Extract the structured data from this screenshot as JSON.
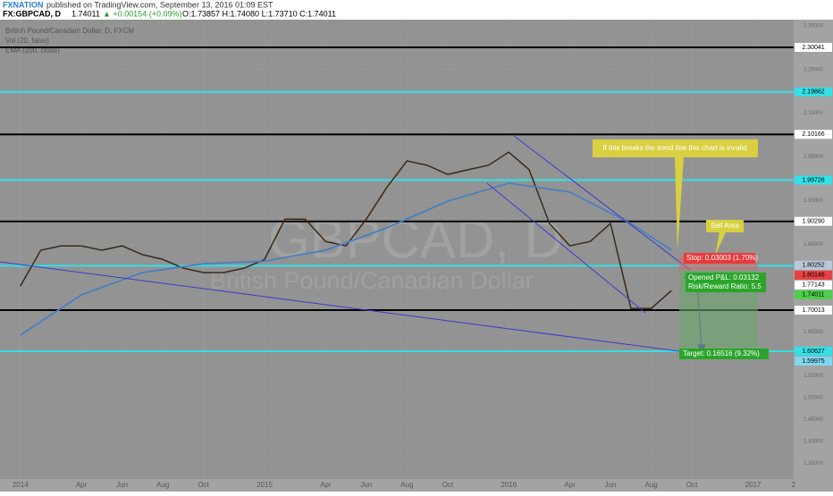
{
  "header": {
    "publisher": "FXNATION",
    "published": "published on TradingView.com, September 13, 2016 01:09 EST",
    "symbol": "FX:GBPCAD, D",
    "price": "1.74011",
    "change": "▲ +0.00154 (+0.09%)",
    "ohlc": "O:1.73857 H:1.74080 L:1.73710 C:1.74011"
  },
  "legend": [
    "British Pound/Canadian Dollar, D, FXCM",
    "Vol (20, false)",
    "EMA (200, close)"
  ],
  "watermark": {
    "symbol": "GBPCAD, D",
    "name": "British Pound/Canadian Dollar"
  },
  "chart_data": {
    "type": "line",
    "xlim": [
      "2013-12",
      "2017-03"
    ],
    "ylim": [
      1.3143,
      2.3637
    ],
    "xticks": [
      {
        "value": "2014-01",
        "label": "2014"
      },
      {
        "value": "2014-04",
        "label": "Apr"
      },
      {
        "value": "2014-06",
        "label": "Jun"
      },
      {
        "value": "2014-08",
        "label": "Aug"
      },
      {
        "value": "2014-10",
        "label": "Oct"
      },
      {
        "value": "2015-01",
        "label": "2015"
      },
      {
        "value": "2015-04",
        "label": "Apr"
      },
      {
        "value": "2015-06",
        "label": "Jun"
      },
      {
        "value": "2015-08",
        "label": "Aug"
      },
      {
        "value": "2015-10",
        "label": "Oct"
      },
      {
        "value": "2016-01",
        "label": "2016"
      },
      {
        "value": "2016-04",
        "label": "Apr"
      },
      {
        "value": "2016-06",
        "label": "Jun"
      },
      {
        "value": "2016-08",
        "label": "Aug"
      },
      {
        "value": "2016-10",
        "label": "Oct"
      },
      {
        "value": "2017-01",
        "label": "2017"
      },
      {
        "value": "2017-03",
        "label": "2"
      }
    ],
    "yticks": [
      {
        "value": 2.35,
        "label": "2.35000"
      },
      {
        "value": 2.25,
        "label": "2.25000"
      },
      {
        "value": 2.15,
        "label": "2.15000"
      },
      {
        "value": 2.05,
        "label": "2.05000"
      },
      {
        "value": 1.95,
        "label": "1.95000"
      },
      {
        "value": 1.85,
        "label": "1.85000"
      },
      {
        "value": 1.65,
        "label": "1.65000"
      },
      {
        "value": 1.55,
        "label": "1.55000"
      },
      {
        "value": 1.5,
        "label": "1.50000"
      },
      {
        "value": 1.45,
        "label": "1.45000"
      },
      {
        "value": 1.4,
        "label": "1.40000"
      },
      {
        "value": 1.35,
        "label": "1.35000"
      }
    ],
    "series": [
      {
        "name": "British Pound/Canadian Dollar, D, FXCM",
        "color": "#3a2a1a",
        "x": [
          "2014-01",
          "2014-02",
          "2014-03",
          "2014-04",
          "2014-05",
          "2014-06",
          "2014-07",
          "2014-08",
          "2014-09",
          "2014-10",
          "2014-11",
          "2014-12",
          "2015-01",
          "2015-02",
          "2015-03",
          "2015-04",
          "2015-05",
          "2015-06",
          "2015-07",
          "2015-08",
          "2015-09",
          "2015-10",
          "2015-11",
          "2015-12",
          "2016-01",
          "2016-02",
          "2016-03",
          "2016-04",
          "2016-05",
          "2016-06",
          "2016-07",
          "2016-08",
          "2016-09"
        ],
        "values": [
          1.755,
          1.837,
          1.847,
          1.847,
          1.837,
          1.847,
          1.827,
          1.816,
          1.796,
          1.786,
          1.786,
          1.796,
          1.816,
          1.908,
          1.908,
          1.857,
          1.847,
          1.908,
          1.98,
          2.041,
          2.031,
          2.01,
          2.021,
          2.031,
          2.061,
          2.021,
          1.898,
          1.847,
          1.857,
          1.898,
          1.704,
          1.704,
          1.745
        ]
      },
      {
        "name": "EMA (200, close)",
        "color": "#4a7fc0",
        "x": [
          "2014-01",
          "2014-04",
          "2014-07",
          "2014-10",
          "2015-01",
          "2015-04",
          "2015-07",
          "2015-10",
          "2016-01",
          "2016-04",
          "2016-07",
          "2016-09"
        ],
        "values": [
          1.643,
          1.735,
          1.786,
          1.806,
          1.812,
          1.837,
          1.888,
          1.949,
          1.99,
          1.97,
          1.898,
          1.837
        ]
      }
    ],
    "levels": [
      {
        "value": 2.30041,
        "color": "#000000"
      },
      {
        "value": 2.19862,
        "color": "#33e0e6"
      },
      {
        "value": 2.10166,
        "color": "#000000"
      },
      {
        "value": 1.99726,
        "color": "#33e0e6"
      },
      {
        "value": 1.9029,
        "color": "#000000"
      },
      {
        "value": 1.80146,
        "color": "#33e0e6"
      },
      {
        "value": 1.70013,
        "color": "#000000"
      },
      {
        "value": 1.60627,
        "color": "#33e0e6"
      }
    ],
    "price_labels": [
      {
        "value": 2.30041,
        "label": "2.30041",
        "color": "#ffffff"
      },
      {
        "value": 2.19862,
        "label": "2.19862",
        "color": "#33e0e6"
      },
      {
        "value": 2.10166,
        "label": "2.10166",
        "color": "#ffffff"
      },
      {
        "value": 1.99726,
        "label": "1.99726",
        "color": "#33e0e6"
      },
      {
        "value": 1.9029,
        "label": "1.90290",
        "color": "#ffffff"
      },
      {
        "value": 1.80252,
        "label": "1.80252",
        "color": "#b8c8d8"
      },
      {
        "value": 1.80146,
        "label": "1.80146",
        "color": "#e84040"
      },
      {
        "value": 1.77143,
        "label": "1.77143",
        "color": "#ffffff"
      },
      {
        "value": 1.74011,
        "label": "1.74011",
        "color": "#4cd04c"
      },
      {
        "value": 1.70013,
        "label": "1.70013",
        "color": "#ffffff"
      },
      {
        "value": 1.60627,
        "label": "1.60627",
        "color": "#33e0e6"
      },
      {
        "value": 1.59975,
        "label": "1.59975",
        "color": "#7fd8f0"
      }
    ],
    "annotations": {
      "invalid": "If this breaks the trend line this chart is invalid",
      "sell": "Sell Area",
      "stop": "Stop: 0.03003 (1.70%)",
      "pnl": "Opened P&L: 0.03132",
      "rr": "Risk/Reward Ratio: 5.5",
      "target": "Target: 0.16516 (9.32%)"
    }
  }
}
